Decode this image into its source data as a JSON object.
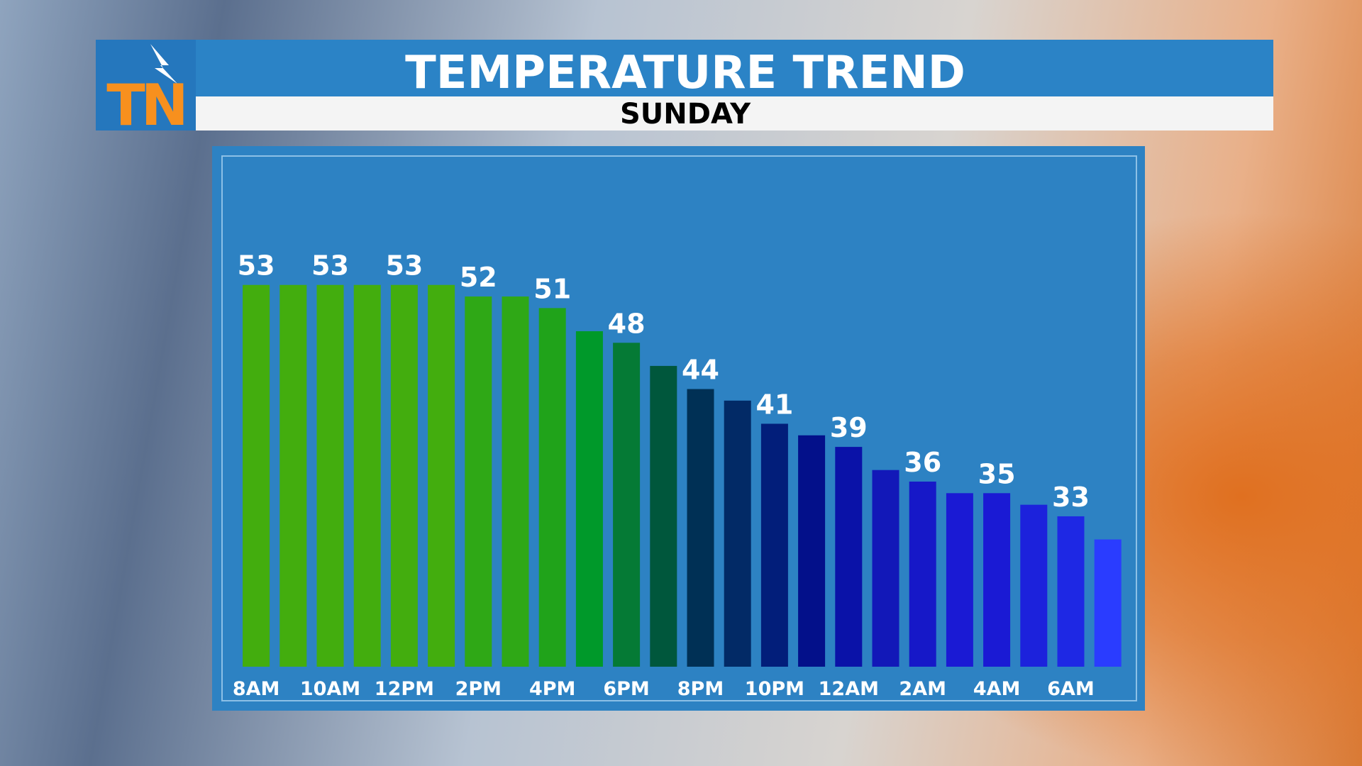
{
  "header": {
    "logo": "TN",
    "title": "TEMPERATURE TREND",
    "subtitle": "SUNDAY"
  },
  "chart_data": {
    "type": "bar",
    "categories": [
      "8AM",
      null,
      "10AM",
      null,
      "12PM",
      null,
      "2PM",
      null,
      "4PM",
      null,
      "6PM",
      null,
      "8PM",
      null,
      "10PM",
      null,
      "12AM",
      null,
      "2AM",
      null,
      "4AM",
      null,
      "6AM",
      null
    ],
    "values": [
      53,
      53,
      53,
      53,
      53,
      53,
      52,
      52,
      51,
      49,
      48,
      46,
      44,
      43,
      41,
      40,
      39,
      37,
      36,
      35,
      35,
      34,
      33,
      31
    ],
    "colors": [
      "#43ad0e",
      "#43ad0e",
      "#43ad0e",
      "#43ad0e",
      "#43ad0e",
      "#43ad0e",
      "#2fa816",
      "#2fa816",
      "#20a31a",
      "#00992a",
      "#057a35",
      "#00573c",
      "#003055",
      "#022a66",
      "#021e7a",
      "#03108a",
      "#0a12a8",
      "#1218b8",
      "#1618c8",
      "#1a1ad4",
      "#1a1ad4",
      "#1c22dc",
      "#1e28e4",
      "#2a3cff"
    ],
    "data_label_every": 2,
    "ylim": [
      20,
      65
    ]
  }
}
